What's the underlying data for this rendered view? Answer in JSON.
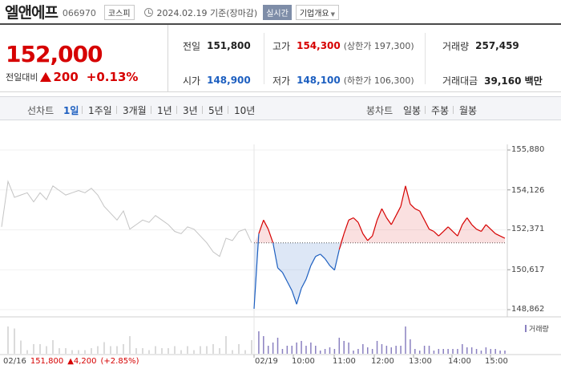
{
  "header": {
    "name": "엘앤에프",
    "code": "066970",
    "market": "코스피",
    "date": "2024.02.19",
    "basis": "기준(장마감)",
    "live_label": "실시간",
    "info_label": "기업개요"
  },
  "price": {
    "current": "152,000",
    "change_label": "전일대비",
    "change": "200",
    "change_pct": "+0.13%",
    "direction": "up"
  },
  "stats": {
    "prev_close": {
      "label": "전일",
      "value": "151,800"
    },
    "high": {
      "label": "고가",
      "value": "154,300",
      "sub": "(상한가 197,300)"
    },
    "volume": {
      "label": "거래량",
      "value": "257,459"
    },
    "open": {
      "label": "시가",
      "value": "148,900"
    },
    "low": {
      "label": "저가",
      "value": "148,100",
      "sub": "(하한가 106,300)"
    },
    "amount": {
      "label": "거래대금",
      "value": "39,160 백만"
    }
  },
  "tabs": {
    "line_label": "선차트",
    "line": [
      "1일",
      "1주일",
      "3개월",
      "1년",
      "3년",
      "5년",
      "10년"
    ],
    "active": "1일",
    "candle_label": "봉차트",
    "candle": [
      "일봉",
      "주봉",
      "월봉"
    ]
  },
  "colors": {
    "up": "#d60000",
    "down": "#1d5fc0",
    "prev_day": "#c4c4c4"
  },
  "chart_data": {
    "type": "line",
    "y_ticks": [
      "155,880",
      "154,126",
      "152,371",
      "150,617",
      "148,862"
    ],
    "ylim": [
      148862,
      155880
    ],
    "baseline": 151800,
    "x_ticks": [
      "02/16",
      "02/19",
      "10:00",
      "11:00",
      "12:00",
      "13:00",
      "14:00",
      "15:00"
    ],
    "previous_day": {
      "date": "02/16",
      "close": "151,800",
      "change": "▲4,200",
      "change_pct": "(+2.85%)",
      "series": [
        152500,
        154500,
        153800,
        153900,
        154000,
        153600,
        154000,
        153700,
        154300,
        154100,
        153900,
        154000,
        154100,
        154000,
        154200,
        153900,
        153400,
        153100,
        152800,
        153200,
        152400,
        152600,
        152800,
        152700,
        153000,
        152800,
        152600,
        152300,
        152200,
        152500,
        152400,
        152100,
        151800,
        151400,
        151200,
        152000,
        151900,
        152300,
        152400,
        151800
      ]
    },
    "today": {
      "series": [
        148900,
        152200,
        152800,
        152400,
        151800,
        150700,
        150500,
        150100,
        149700,
        149100,
        149800,
        150200,
        150800,
        151200,
        151300,
        151100,
        150800,
        150600,
        151500,
        152200,
        152800,
        152900,
        152700,
        152200,
        151900,
        152100,
        152800,
        153300,
        152900,
        152600,
        153000,
        153400,
        154300,
        153500,
        153300,
        153200,
        152800,
        152400,
        152300,
        152100,
        152300,
        152500,
        152300,
        152100,
        152600,
        152900,
        152600,
        152400,
        152300,
        152600,
        152400,
        152200,
        152100,
        152000
      ]
    },
    "volume_label": "거래량"
  }
}
